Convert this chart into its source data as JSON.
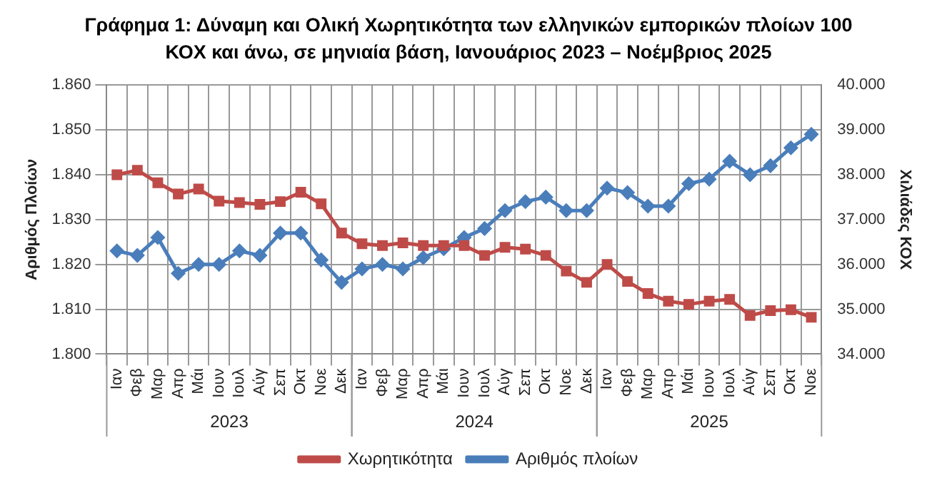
{
  "chart_data": {
    "type": "line",
    "title": "Γράφημα 1: Δύναμη και Ολική Χωρητικότητα των ελληνικών εμπορικών πλοίων 100 ΚΟΧ και άνω, σε μηνιαία βάση, Ιανουάριος 2023 – Νοέμβριος 2025",
    "ylabel": "Αριθμός Πλοίων",
    "y2label": "Χιλιάδες ΚΟΧ",
    "categories": [
      "Ιαν",
      "Φεβ",
      "Μαρ",
      "Απρ",
      "Μάι",
      "Ιουν",
      "Ιουλ",
      "Αύγ",
      "Σεπ",
      "Οκτ",
      "Νοε",
      "Δεκ",
      "Ιαν",
      "Φεβ",
      "Μαρ",
      "Απρ",
      "Μάι",
      "Ιουν",
      "Ιουλ",
      "Αύγ",
      "Σεπ",
      "Οκτ",
      "Νοε",
      "Δεκ",
      "Ιαν",
      "Φεβ",
      "Μαρ",
      "Απρ",
      "Μάι",
      "Ιουν",
      "Ιουλ",
      "Αύγ",
      "Σεπ",
      "Οκτ",
      "Νοε"
    ],
    "annotations": [
      "2023",
      "2024",
      "2025"
    ],
    "series": [
      {
        "name": "Αριθμός πλοίων",
        "color": "#4a7ebb",
        "marker": "diamond",
        "values": [
          1823,
          1822,
          1826,
          1818,
          1820,
          1820,
          1823,
          1822,
          1827,
          1827,
          1821,
          1816,
          1819,
          1820,
          1819,
          1821.5,
          1823.5,
          1826,
          1828,
          1832,
          1834,
          1835,
          1832,
          1832,
          1837,
          1836,
          1833,
          1833,
          1838,
          1839,
          1843,
          1840,
          1842,
          1846,
          1849
        ]
      },
      {
        "name": "Χωρητικότητα",
        "color": "#be4b48",
        "marker": "square",
        "axis": "y2",
        "values": [
          38000,
          38100,
          37820,
          37570,
          37680,
          37410,
          37380,
          37340,
          37400,
          37610,
          37350,
          36700,
          36460,
          36420,
          36480,
          36420,
          36420,
          36420,
          36200,
          36380,
          36340,
          36200,
          35850,
          35600,
          36000,
          35620,
          35350,
          35180,
          35110,
          35180,
          35220,
          34860,
          34970,
          34990,
          34820
        ]
      }
    ],
    "ylim": [
      1800,
      1860
    ],
    "yticks": [
      {
        "value": 1800,
        "label": "1.800"
      },
      {
        "value": 1810,
        "label": "1.810"
      },
      {
        "value": 1820,
        "label": "1.820"
      },
      {
        "value": 1830,
        "label": "1.830"
      },
      {
        "value": 1840,
        "label": "1.840"
      },
      {
        "value": 1850,
        "label": "1.850"
      },
      {
        "value": 1860,
        "label": "1.860"
      }
    ],
    "y2lim": [
      34000,
      40000
    ],
    "y2ticks": [
      {
        "value": 34000,
        "label": "34.000"
      },
      {
        "value": 35000,
        "label": "35.000"
      },
      {
        "value": 36000,
        "label": "36.000"
      },
      {
        "value": 37000,
        "label": "37.000"
      },
      {
        "value": 38000,
        "label": "38.000"
      },
      {
        "value": 39000,
        "label": "39.000"
      },
      {
        "value": 40000,
        "label": "40.000"
      }
    ],
    "grid": true,
    "legend": "bottom",
    "line_style": "solid"
  }
}
